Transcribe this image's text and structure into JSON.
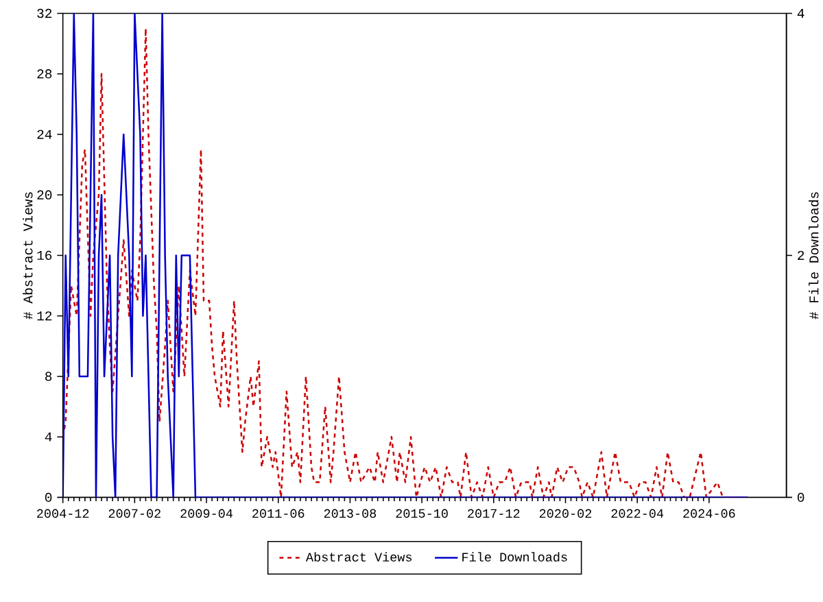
{
  "chart_data": {
    "type": "line",
    "ylabel": "# Abstract Views",
    "y2label": "# File Downloads",
    "xlim": [
      "2004-12",
      "2026-10"
    ],
    "xticks": [
      "2004-12",
      "2007-02",
      "2009-04",
      "2011-06",
      "2013-08",
      "2015-10",
      "2017-12",
      "2020-02",
      "2022-04",
      "2024-06"
    ],
    "ylim": [
      0,
      32
    ],
    "yticks": [
      0,
      4,
      8,
      12,
      16,
      20,
      24,
      28,
      32
    ],
    "y2lim": [
      0,
      4
    ],
    "y2ticks": [
      0,
      2,
      4
    ],
    "legend": "bottom",
    "series": [
      {
        "name": "Abstract Views",
        "color": "#cc0000",
        "line_style": "dashed",
        "x": [
          "2004-12",
          "2005-01",
          "2005-03",
          "2005-05",
          "2005-07",
          "2005-08",
          "2005-10",
          "2005-11",
          "2006-01",
          "2006-02",
          "2006-04",
          "2006-05",
          "2006-06",
          "2006-08",
          "2006-10",
          "2006-12",
          "2007-01",
          "2007-03",
          "2007-04",
          "2007-06",
          "2007-07",
          "2007-09",
          "2007-10",
          "2007-11",
          "2008-01",
          "2008-02",
          "2008-04",
          "2008-06",
          "2008-08",
          "2008-10",
          "2008-12",
          "2009-02",
          "2009-03",
          "2009-05",
          "2009-06",
          "2009-07",
          "2009-09",
          "2009-10",
          "2009-12",
          "2010-02",
          "2010-03",
          "2010-05",
          "2010-06",
          "2010-08",
          "2010-09",
          "2010-11",
          "2010-12",
          "2011-02",
          "2011-04",
          "2011-05",
          "2011-07",
          "2011-09",
          "2011-11",
          "2012-01",
          "2012-02",
          "2012-04",
          "2012-06",
          "2012-07",
          "2012-09",
          "2012-11",
          "2013-01",
          "2013-02",
          "2013-04",
          "2013-06",
          "2013-08",
          "2013-10",
          "2013-12",
          "2014-03",
          "2014-05",
          "2014-06",
          "2014-08",
          "2014-11",
          "2015-01",
          "2015-02",
          "2015-04",
          "2015-06",
          "2015-08",
          "2015-11",
          "2016-01",
          "2016-03",
          "2016-05",
          "2016-07",
          "2016-09",
          "2016-11",
          "2016-12",
          "2017-02",
          "2017-04",
          "2017-06",
          "2017-08",
          "2017-10",
          "2017-12",
          "2018-02",
          "2018-04",
          "2018-06",
          "2018-08",
          "2018-10",
          "2019-01",
          "2019-02",
          "2019-04",
          "2019-06",
          "2019-08",
          "2019-09",
          "2019-11",
          "2020-01",
          "2020-03",
          "2020-05",
          "2020-07",
          "2020-08",
          "2020-10",
          "2020-12",
          "2021-03",
          "2021-05",
          "2021-08",
          "2021-10",
          "2022-01",
          "2022-03",
          "2022-05",
          "2022-07",
          "2022-09",
          "2022-11",
          "2023-01",
          "2023-03",
          "2023-05",
          "2023-07",
          "2023-09",
          "2023-11",
          "2024-03",
          "2024-05",
          "2024-09",
          "2024-11",
          "2025-08"
        ],
        "values": [
          4,
          5,
          14,
          12,
          22,
          23,
          12,
          16,
          20,
          28,
          14,
          10,
          7,
          12,
          17,
          12,
          15,
          13,
          17,
          31,
          24,
          14,
          11,
          5,
          10,
          13,
          7,
          14,
          8,
          15,
          12,
          23,
          13,
          13,
          10,
          8,
          6,
          11,
          6,
          13,
          9,
          3,
          5,
          8,
          6,
          9,
          2,
          4,
          2,
          3,
          0,
          7,
          2,
          3,
          1,
          8,
          2,
          1,
          1,
          6,
          1,
          3,
          8,
          3,
          1,
          3,
          1,
          2,
          1,
          3,
          1,
          4,
          1,
          3,
          1,
          4,
          0,
          2,
          1,
          2,
          0,
          2,
          1,
          1,
          0,
          3,
          0,
          1,
          0,
          2,
          0,
          1,
          1,
          2,
          0,
          1,
          1,
          0,
          2,
          0,
          1,
          0,
          2,
          1,
          2,
          2,
          1,
          0,
          1,
          0,
          3,
          0,
          3,
          1,
          1,
          0,
          1,
          1,
          0,
          2,
          0,
          3,
          1,
          1,
          0,
          0,
          3,
          0,
          1,
          0,
          0
        ]
      },
      {
        "name": "File Downloads",
        "color": "#0000cc",
        "line_style": "solid",
        "axis": "y2",
        "x": [
          "2004-12",
          "2005-01",
          "2005-02",
          "2005-03",
          "2005-04",
          "2005-05",
          "2005-06",
          "2005-09",
          "2005-10",
          "2005-11",
          "2005-12",
          "2006-01",
          "2006-02",
          "2006-03",
          "2006-05",
          "2006-06",
          "2006-07",
          "2006-08",
          "2006-10",
          "2006-12",
          "2007-01",
          "2007-02",
          "2007-04",
          "2007-05",
          "2007-06",
          "2007-08",
          "2007-10",
          "2007-12",
          "2008-01",
          "2008-02",
          "2008-04",
          "2008-05",
          "2008-06",
          "2008-07",
          "2008-10",
          "2008-11",
          "2008-12",
          "2025-08"
        ],
        "values": [
          0,
          2,
          1,
          2.5,
          4,
          3,
          1,
          1,
          2.5,
          4,
          0,
          2,
          2.5,
          1,
          2,
          0.5,
          0,
          2,
          3,
          2,
          1,
          4,
          3,
          1.5,
          2,
          0,
          0,
          4,
          2,
          1,
          0,
          2,
          1,
          2,
          2,
          1,
          0,
          0
        ]
      }
    ]
  }
}
